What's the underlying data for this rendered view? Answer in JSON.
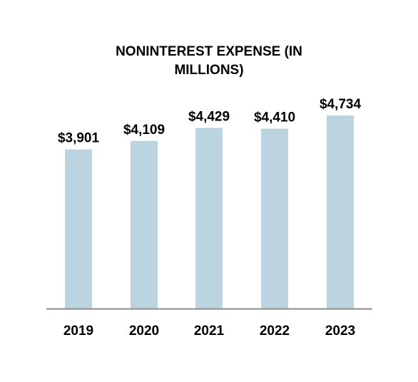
{
  "chart_data": {
    "type": "bar",
    "title_lines": [
      "NONINTEREST EXPENSE (IN",
      "MILLIONS)"
    ],
    "categories": [
      "2019",
      "2020",
      "2021",
      "2022",
      "2023"
    ],
    "values": [
      3901,
      4109,
      4429,
      4410,
      4734
    ],
    "value_labels": [
      "$3,901",
      "$4,109",
      "$4,429",
      "$4,410",
      "$4,734"
    ],
    "ylim": [
      0,
      4734
    ],
    "grid": false,
    "legend": "none",
    "colors": {
      "bar": "#bcd4e0",
      "axis": "#8c8c8c",
      "text": "#000000"
    }
  }
}
